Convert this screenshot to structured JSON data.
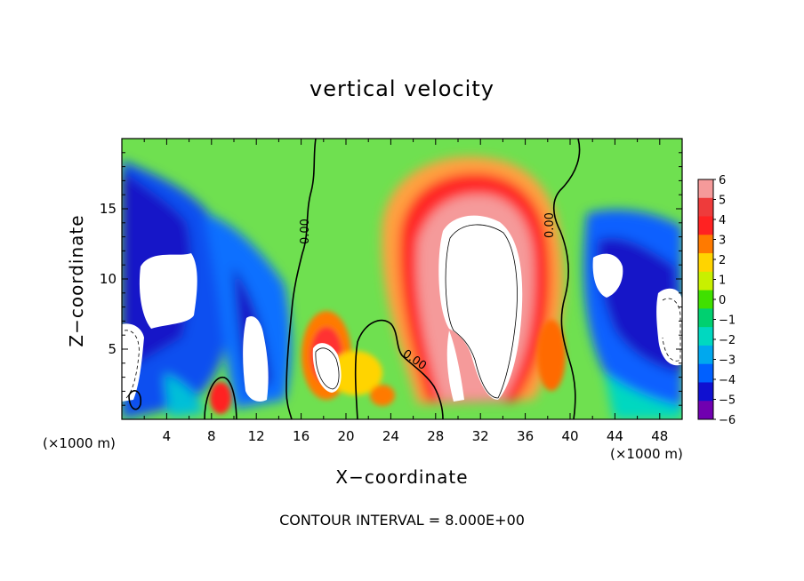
{
  "chart_data": {
    "type": "heatmap",
    "title": "vertical velocity",
    "xlabel": "X−coordinate",
    "ylabel": "Z−coordinate",
    "x_unit": "(×1000 m)",
    "y_unit": "(×1000 m)",
    "x_range": [
      0,
      50
    ],
    "y_range": [
      0,
      20
    ],
    "x_ticks": [
      4,
      8,
      12,
      16,
      20,
      24,
      28,
      32,
      36,
      40,
      44,
      48
    ],
    "y_ticks": [
      5,
      10,
      15
    ],
    "colorbar": {
      "levels": [
        6,
        5,
        4,
        3,
        2,
        1,
        0,
        -1,
        -2,
        -3,
        -4,
        -5,
        -6
      ],
      "labels": [
        "6",
        "5",
        "4",
        "3",
        "2",
        "1",
        "0",
        "−1",
        "−2",
        "−3",
        "−4",
        "−5",
        "−6"
      ],
      "colors": [
        "#f59a9a",
        "#ee3b3b",
        "#ff2222",
        "#ff7a00",
        "#ffd400",
        "#c8f000",
        "#40e000",
        "#00d070",
        "#00d8c0",
        "#00a8ee",
        "#0060ff",
        "#1010d0",
        "#7000b0"
      ]
    },
    "background_color": "#6fe050",
    "contour_labels": [
      "0.00",
      "0.00",
      "0.00"
    ],
    "features": [
      {
        "kind": "updraft-core",
        "x": 31.5,
        "y": 9.5,
        "value": 8
      },
      {
        "kind": "updraft",
        "x": 18.2,
        "y": 5.5,
        "value": 5
      },
      {
        "kind": "downdraft",
        "x": 4.5,
        "y": 10,
        "value": -8
      },
      {
        "kind": "downdraft",
        "x": 12.2,
        "y": 6.5,
        "value": -8
      },
      {
        "kind": "downdraft",
        "x": 44.5,
        "y": 10,
        "value": -8
      },
      {
        "kind": "downdraft",
        "x": 49,
        "y": 6.5,
        "value": -8
      },
      {
        "kind": "downdraft",
        "x": 1.5,
        "y": 5,
        "value": -8
      }
    ]
  },
  "footer": "CONTOUR INTERVAL = 8.000E+00"
}
